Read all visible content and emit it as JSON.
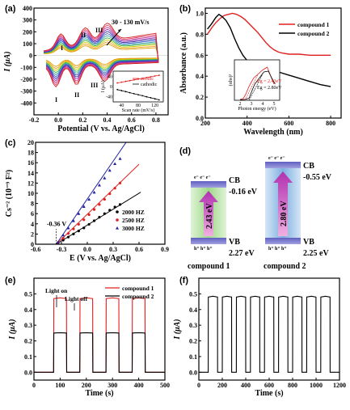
{
  "chart_data": [
    {
      "id": "a",
      "type": "line",
      "panel_label": "(a)",
      "xlabel": "Potential (V vs. Ag/AgCl)",
      "ylabel": "I (μA)",
      "xlim": [
        -0.2,
        0.9
      ],
      "ylim": [
        -500,
        400
      ],
      "xticks": [
        "-0.2",
        "0.0",
        "0.2",
        "0.4",
        "0.6",
        "0.8"
      ],
      "yticks": [
        "400",
        "300",
        "200",
        "100",
        "0",
        "-100",
        "-200",
        "-300",
        "-400"
      ],
      "annotation": "30 - 130 mV/s",
      "peak_labels": [
        "I",
        "II",
        "III",
        "I",
        "II",
        "III"
      ],
      "scan_rates_mVs": [
        30,
        40,
        50,
        60,
        70,
        80,
        90,
        100,
        110,
        120,
        130
      ],
      "series_colors": [
        "#e0a000",
        "#f0a030",
        "#d0d000",
        "#40b040",
        "#30a0a0",
        "#4060d0",
        "#3030a0",
        "#9030b0",
        "#c040a0",
        "#e04060",
        "#d02020"
      ],
      "inset": {
        "xlabel": "Scan rate (mV/s)",
        "ylabel": "I (μA)",
        "xticks": [
          "40",
          "80",
          "120"
        ],
        "yticks": [
          "40",
          "0",
          "-40"
        ],
        "legend": [
          "anodic",
          "cathodic"
        ],
        "anodic": {
          "x": [
            30,
            40,
            50,
            60,
            70,
            80,
            90,
            100,
            110,
            120,
            130
          ],
          "y": [
            14,
            17,
            20,
            23,
            26,
            29,
            32,
            35,
            38,
            41,
            44
          ]
        },
        "cathodic": {
          "x": [
            30,
            40,
            50,
            60,
            70,
            80,
            90,
            100,
            110,
            120,
            130
          ],
          "y": [
            -12,
            -16,
            -20,
            -24,
            -28,
            -32,
            -36,
            -40,
            -44,
            -48,
            -52
          ]
        }
      }
    },
    {
      "id": "b",
      "type": "line",
      "panel_label": "(b)",
      "xlabel": "Wavelength (nm)",
      "ylabel": "Absorbance (a.u.)",
      "xlim": [
        200,
        850
      ],
      "ylim": [
        0,
        1.05
      ],
      "xticks": [
        "200",
        "400",
        "600",
        "800"
      ],
      "yticks": [
        "0.0",
        "0.2",
        "0.4",
        "0.6",
        "0.8",
        "1.0"
      ],
      "series": [
        {
          "name": "compound 1",
          "color": "#e02020",
          "x": [
            210,
            230,
            250,
            270,
            290,
            310,
            330,
            350,
            370,
            390,
            410,
            430,
            450,
            470,
            490,
            510,
            530,
            550,
            570,
            600,
            650,
            700,
            750,
            800
          ],
          "y": [
            0.8,
            0.86,
            0.91,
            0.95,
            0.98,
            0.99,
            1.0,
            0.99,
            0.97,
            0.94,
            0.9,
            0.86,
            0.82,
            0.77,
            0.72,
            0.68,
            0.65,
            0.63,
            0.62,
            0.61,
            0.61,
            0.6,
            0.6,
            0.6
          ]
        },
        {
          "name": "compound 2",
          "color": "#000000",
          "x": [
            210,
            230,
            250,
            265,
            280,
            300,
            320,
            340,
            360,
            380,
            400,
            420,
            440,
            460,
            480,
            500,
            550,
            600,
            650,
            700,
            750,
            800
          ],
          "y": [
            0.85,
            0.9,
            0.96,
            0.99,
            0.97,
            0.93,
            0.86,
            0.76,
            0.67,
            0.6,
            0.55,
            0.52,
            0.5,
            0.49,
            0.48,
            0.47,
            0.44,
            0.41,
            0.38,
            0.35,
            0.32,
            0.3
          ]
        }
      ],
      "inset": {
        "xlabel": "Photon energy (eV)",
        "ylabel": "(αhν)²",
        "xticks": [
          "2",
          "3",
          "4",
          "5"
        ],
        "annotations": [
          "Eg = 2.43eV",
          "Eg = 2.80eV"
        ]
      }
    },
    {
      "id": "c",
      "type": "scatter",
      "panel_label": "(c)",
      "xlabel": "E (V vs. Ag/AgCl)",
      "ylabel": "Cs⁻² (10⁻⁹ F²)",
      "xlim": [
        -0.6,
        0.9
      ],
      "ylim": [
        0,
        20
      ],
      "xticks": [
        "-0.6",
        "-0.3",
        "0.0",
        "0.3",
        "0.6",
        "0.9"
      ],
      "yticks": [
        "0",
        "2",
        "4",
        "6",
        "8",
        "10",
        "12",
        "14",
        "16",
        "18",
        "20"
      ],
      "annotation": "-0.36 V",
      "series": [
        {
          "name": "2000 HZ",
          "color": "#000000",
          "marker": "circle",
          "x": [
            -0.34,
            -0.28,
            -0.22,
            -0.16,
            -0.1,
            -0.04,
            0.02,
            0.08,
            0.14,
            0.2,
            0.26,
            0.32,
            0.38
          ],
          "y": [
            0.2,
            0.8,
            1.4,
            2.0,
            2.6,
            3.2,
            3.9,
            4.6,
            5.3,
            6.0,
            6.7,
            7.3,
            7.8
          ]
        },
        {
          "name": "2500 HZ",
          "color": "#e02020",
          "marker": "circle",
          "x": [
            -0.34,
            -0.28,
            -0.22,
            -0.16,
            -0.1,
            -0.04,
            0.02,
            0.08,
            0.14,
            0.2,
            0.26,
            0.32,
            0.38
          ],
          "y": [
            0.3,
            1.2,
            2.1,
            3.0,
            3.9,
            4.8,
            5.8,
            6.8,
            7.8,
            8.8,
            9.9,
            11.0,
            12.0
          ]
        },
        {
          "name": "3000 HZ",
          "color": "#2020a0",
          "marker": "triangle",
          "x": [
            -0.34,
            -0.28,
            -0.22,
            -0.16,
            -0.1,
            -0.04,
            0.02,
            0.08,
            0.14,
            0.2,
            0.26,
            0.32,
            0.38
          ],
          "y": [
            0.4,
            1.8,
            3.2,
            4.6,
            6.0,
            7.4,
            8.8,
            10.2,
            11.6,
            13.0,
            14.5,
            15.8,
            16.8
          ]
        }
      ],
      "fit_lines": [
        {
          "color": "#000000",
          "x": [
            -0.36,
            0.62
          ],
          "y": [
            0,
            10.2
          ]
        },
        {
          "color": "#e02020",
          "x": [
            -0.36,
            0.6
          ],
          "y": [
            0,
            15.7
          ]
        },
        {
          "color": "#2020a0",
          "x": [
            -0.36,
            0.45
          ],
          "y": [
            0,
            20
          ]
        }
      ]
    },
    {
      "id": "d",
      "type": "diagram",
      "panel_label": "(d)",
      "compounds": [
        {
          "name": "compound 1",
          "cb_label": "CB",
          "cb_value": "-0.16 eV",
          "vb_label": "VB",
          "vb_value": "2.27 eV",
          "gap": "2.43 eV",
          "electrons": "e⁻ e⁻ e⁻",
          "holes": "h⁺ h⁺ h⁺",
          "color": "#9fd88a"
        },
        {
          "name": "compound 2",
          "cb_label": "CB",
          "cb_value": "-0.55 eV",
          "vb_label": "VB",
          "vb_value": "2.25 eV",
          "gap": "2.80 eV",
          "electrons": "e⁻ e⁻ e⁻",
          "holes": "h⁺ h⁺ h⁺",
          "color": "#7fb0e0"
        }
      ]
    },
    {
      "id": "e",
      "type": "line",
      "panel_label": "(e)",
      "xlabel": "Time (s)",
      "ylabel": "I (μA)",
      "xlim": [
        0,
        500
      ],
      "ylim": [
        -0.05,
        0.6
      ],
      "xticks": [
        "0",
        "100",
        "200",
        "300",
        "400",
        "500"
      ],
      "yticks": [
        "0.0",
        "0.1",
        "0.2",
        "0.3",
        "0.4",
        "0.5"
      ],
      "annotations": [
        "Light on",
        "Light off"
      ],
      "light_on_periods": [
        [
          75,
          125
        ],
        [
          175,
          225
        ],
        [
          275,
          325
        ],
        [
          375,
          425
        ]
      ],
      "series": [
        {
          "name": "compound 1",
          "color": "#e02020",
          "on_level": 0.47,
          "off_level": 0.0
        },
        {
          "name": "compound 2",
          "color": "#000000",
          "on_level": 0.25,
          "off_level": 0.0
        }
      ]
    },
    {
      "id": "f",
      "type": "line",
      "panel_label": "(f)",
      "xlabel": "Time (s)",
      "ylabel": "I (μA)",
      "xlim": [
        0,
        1200
      ],
      "ylim": [
        -0.05,
        0.6
      ],
      "xticks": [
        "0",
        "200",
        "400",
        "600",
        "800",
        "1000",
        "1200"
      ],
      "yticks": [
        "0.0",
        "0.1",
        "0.2",
        "0.3",
        "0.4",
        "0.5"
      ],
      "light_on_periods": [
        [
          80,
          160
        ],
        [
          200,
          280
        ],
        [
          320,
          400
        ],
        [
          440,
          520
        ],
        [
          560,
          640
        ],
        [
          680,
          760
        ],
        [
          800,
          880
        ],
        [
          920,
          1000
        ],
        [
          1040,
          1120
        ]
      ],
      "series": [
        {
          "name": "",
          "color": "#000000",
          "on_level": 0.48,
          "off_level": 0.0
        }
      ]
    }
  ]
}
